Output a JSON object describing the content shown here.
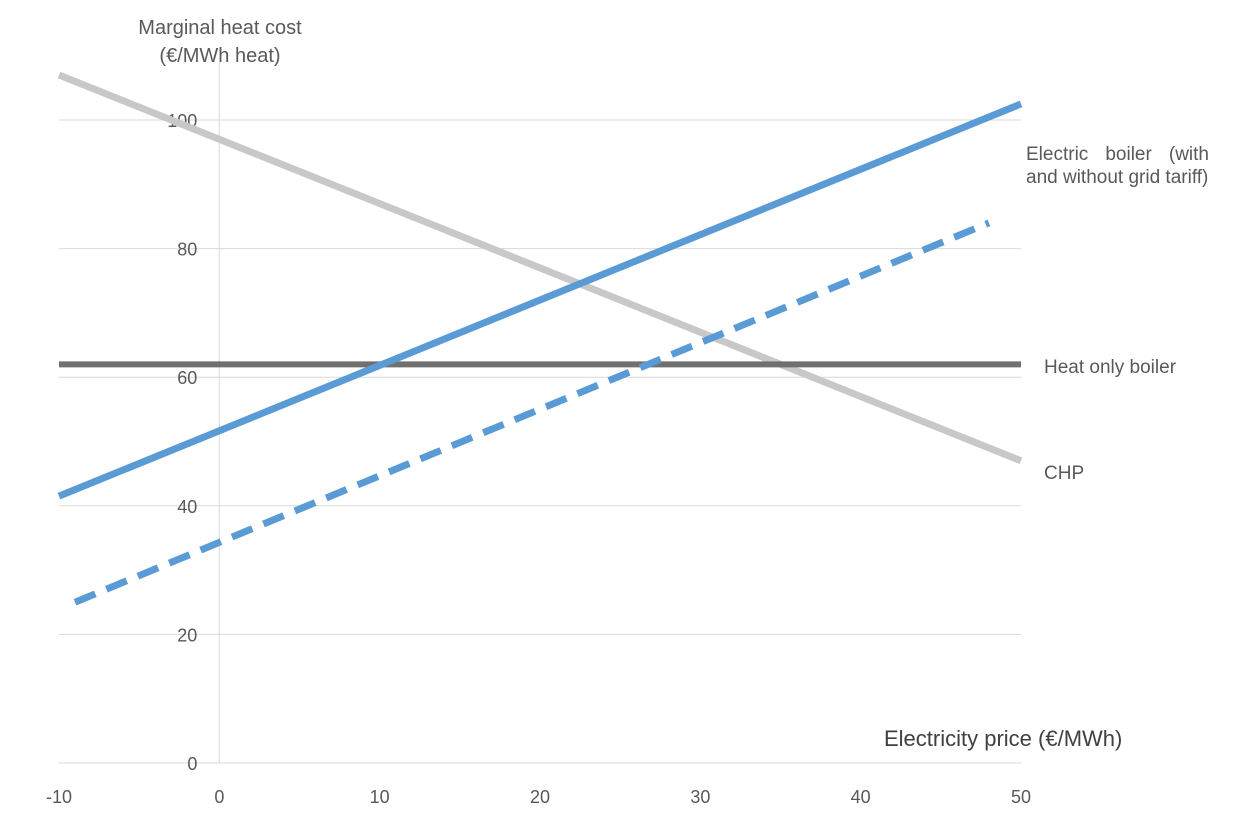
{
  "chart_data": {
    "type": "line",
    "ylabel_lines": [
      "Marginal heat cost",
      "(€/MWh heat)"
    ],
    "xlabel": "Electricity price (€/MWh)",
    "xlim": [
      -10,
      50
    ],
    "ylim": [
      0,
      100
    ],
    "x_ticks": [
      -10,
      0,
      10,
      20,
      30,
      40,
      50
    ],
    "y_ticks": [
      0,
      20,
      40,
      60,
      80,
      100
    ],
    "grid": "horizontal",
    "series": [
      {
        "key": "chp",
        "label": "CHP",
        "color": "#c8c8c8",
        "style": "solid",
        "x": [
          -10,
          50
        ],
        "y": [
          107,
          47
        ]
      },
      {
        "key": "hob",
        "label": "Heat only boiler",
        "color": "#707070",
        "style": "solid",
        "x": [
          -10,
          50
        ],
        "y": [
          62,
          62
        ]
      },
      {
        "key": "eb",
        "label": "Electric boiler (with and without grid tariff)",
        "color": "#5b9bd5",
        "style": "solid",
        "x": [
          -10,
          50
        ],
        "y": [
          41.5,
          102.5
        ]
      },
      {
        "key": "eb_nt",
        "label": "",
        "color": "#5b9bd5",
        "style": "dashed",
        "x": [
          -9,
          48
        ],
        "y": [
          25,
          84
        ]
      }
    ]
  },
  "labels": {
    "electric_boiler": "Electric boiler (with and without grid tariff)",
    "heat_only_boiler": "Heat only boiler",
    "chp": "CHP"
  }
}
